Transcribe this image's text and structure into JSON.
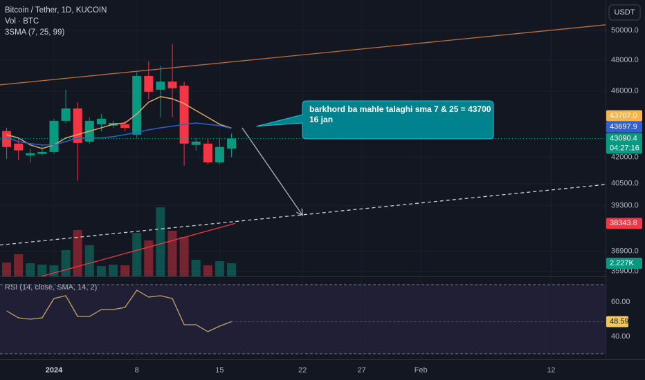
{
  "chart_data": {
    "type": "candlestick",
    "title": "Bitcoin / Tether, 1D, KUCOIN",
    "indicators": [
      "Vol · BTC",
      "3SMA (7, 25, 99)"
    ],
    "currency": "USDT",
    "log": true,
    "grid": true,
    "up_color": "#089981",
    "down_color": "#f23645",
    "x": [
      -4,
      -3,
      -2,
      -1,
      0,
      1,
      2,
      3,
      4,
      5,
      6,
      7,
      8,
      9,
      10,
      11,
      12,
      13,
      14,
      15
    ],
    "open": [
      43530,
      42790,
      42100,
      42190,
      42300,
      44150,
      44910,
      42910,
      43940,
      43860,
      43940,
      43320,
      46960,
      46080,
      46600,
      46340,
      42710,
      42790,
      41700,
      42500
    ],
    "high": [
      43730,
      43120,
      42500,
      42710,
      44280,
      46080,
      45300,
      44360,
      44570,
      44150,
      44150,
      47200,
      47900,
      47630,
      49060,
      46600,
      43120,
      43120,
      43120,
      43400
    ],
    "low": [
      41900,
      41820,
      41700,
      42100,
      42190,
      44000,
      40650,
      42790,
      43530,
      43730,
      43530,
      43120,
      45500,
      44360,
      44360,
      41510,
      42390,
      41600,
      41600,
      42000
    ],
    "close": [
      42590,
      42390,
      42230,
      42300,
      44150,
      44910,
      42830,
      44150,
      44280,
      44020,
      43730,
      46960,
      45950,
      46600,
      46170,
      42790,
      42910,
      41700,
      42590,
      43090.4
    ],
    "countdown": "04:27:16",
    "xlim": [
      -4.56,
      46.6
    ],
    "xticks": [
      {
        "value": 0,
        "label": "2024"
      },
      {
        "value": 7,
        "label": "8"
      },
      {
        "value": 14,
        "label": "15"
      },
      {
        "value": 21,
        "label": "22"
      },
      {
        "value": 26,
        "label": "27"
      },
      {
        "value": 31,
        "label": "Feb"
      },
      {
        "value": 42,
        "label": "12"
      }
    ],
    "ylim": [
      35650,
      52130
    ],
    "yticks": [
      {
        "value": 50000,
        "label": "50000.0"
      },
      {
        "value": 48000,
        "label": "48000.0"
      },
      {
        "value": 46000,
        "label": "46000.0"
      },
      {
        "value": 42000,
        "label": "42000.0"
      },
      {
        "value": 40500,
        "label": "40500.0"
      },
      {
        "value": 39300,
        "label": "39300.0"
      },
      {
        "value": 36900,
        "label": "36900.0"
      },
      {
        "value": 35900,
        "label": "35900.0"
      }
    ],
    "sma": [
      {
        "color": "#e0a465",
        "values": [
          43320,
          43120,
          42710,
          42500,
          42710,
          43120,
          43320,
          43530,
          43730,
          43940,
          44020,
          44570,
          45300,
          45640,
          45510,
          45210,
          44780,
          44360,
          43940,
          43707
        ]
      },
      {
        "color": "#2f5fd0",
        "values": [
          43120,
          42910,
          42790,
          42710,
          42710,
          42910,
          43120,
          43120,
          43120,
          43200,
          43320,
          43450,
          43610,
          43730,
          43820,
          43940,
          44020,
          43940,
          43860,
          43697.9
        ]
      }
    ],
    "axis_labels": [
      {
        "value": 43090.4,
        "label": "43090.4",
        "color": "#089981"
      },
      {
        "value": 43697.9,
        "label": "43697.9",
        "color": "#2f5fd0"
      },
      {
        "value": 43707,
        "label": "43707.0",
        "color": "#f7b34d"
      },
      {
        "value": 38343.8,
        "label": "38343.8",
        "color": "#f23645"
      }
    ],
    "drawings": [
      {
        "type": "line",
        "color": "#c0703a",
        "dash": false,
        "points": [
          [
            -4.56,
            46390
          ],
          [
            46.6,
            50380
          ]
        ]
      },
      {
        "type": "line",
        "color": "#d1d4dc",
        "dash": true,
        "points": [
          [
            -4.56,
            37220
          ],
          [
            46.6,
            40450
          ]
        ]
      },
      {
        "type": "line",
        "color": "#f23645",
        "dash": false,
        "points": [
          [
            -1.05,
            35650
          ],
          [
            15.3,
            38343.8
          ]
        ]
      },
      {
        "type": "arrow",
        "color": "#b2b5be",
        "dash": false,
        "points": [
          [
            15.9,
            43730
          ],
          [
            21,
            38770
          ]
        ]
      }
    ],
    "callout": {
      "text": [
        "barkhord ba mahle talaghi sma 7 & 25 = 43700",
        "16 jan"
      ],
      "anchor": [
        17.1,
        43820
      ],
      "color": "#00838f"
    },
    "volume": {
      "values": [
        2340,
        3744,
        2223,
        1989,
        1872,
        4446,
        7839,
        5265,
        1755,
        1989,
        1872,
        7371,
        6084,
        11700,
        7722,
        6669,
        2808,
        1872,
        2574,
        2227
      ],
      "value_labels": [
        null,
        null,
        null,
        null,
        null,
        null,
        null,
        null,
        null,
        null,
        null,
        null,
        null,
        null,
        null,
        null,
        null,
        null,
        null,
        "2.227K"
      ],
      "ylim": [
        0,
        46800
      ]
    },
    "rsi": {
      "title": "RSI (14, close, SMA, 14, 2)",
      "color": "#c8a665",
      "values": [
        54.8,
        50.8,
        50,
        50.8,
        62,
        63.6,
        51.6,
        51.6,
        55.6,
        55.6,
        56.8,
        66.8,
        62.8,
        63.6,
        62,
        46.8,
        46.8,
        42.8,
        46,
        48.59
      ],
      "ylim": [
        26.8,
        74.8
      ],
      "yticks": [
        {
          "value": 60,
          "label": "60.00"
        },
        {
          "value": 40,
          "label": "40.00"
        }
      ],
      "bands": [
        70,
        30
      ]
    }
  }
}
